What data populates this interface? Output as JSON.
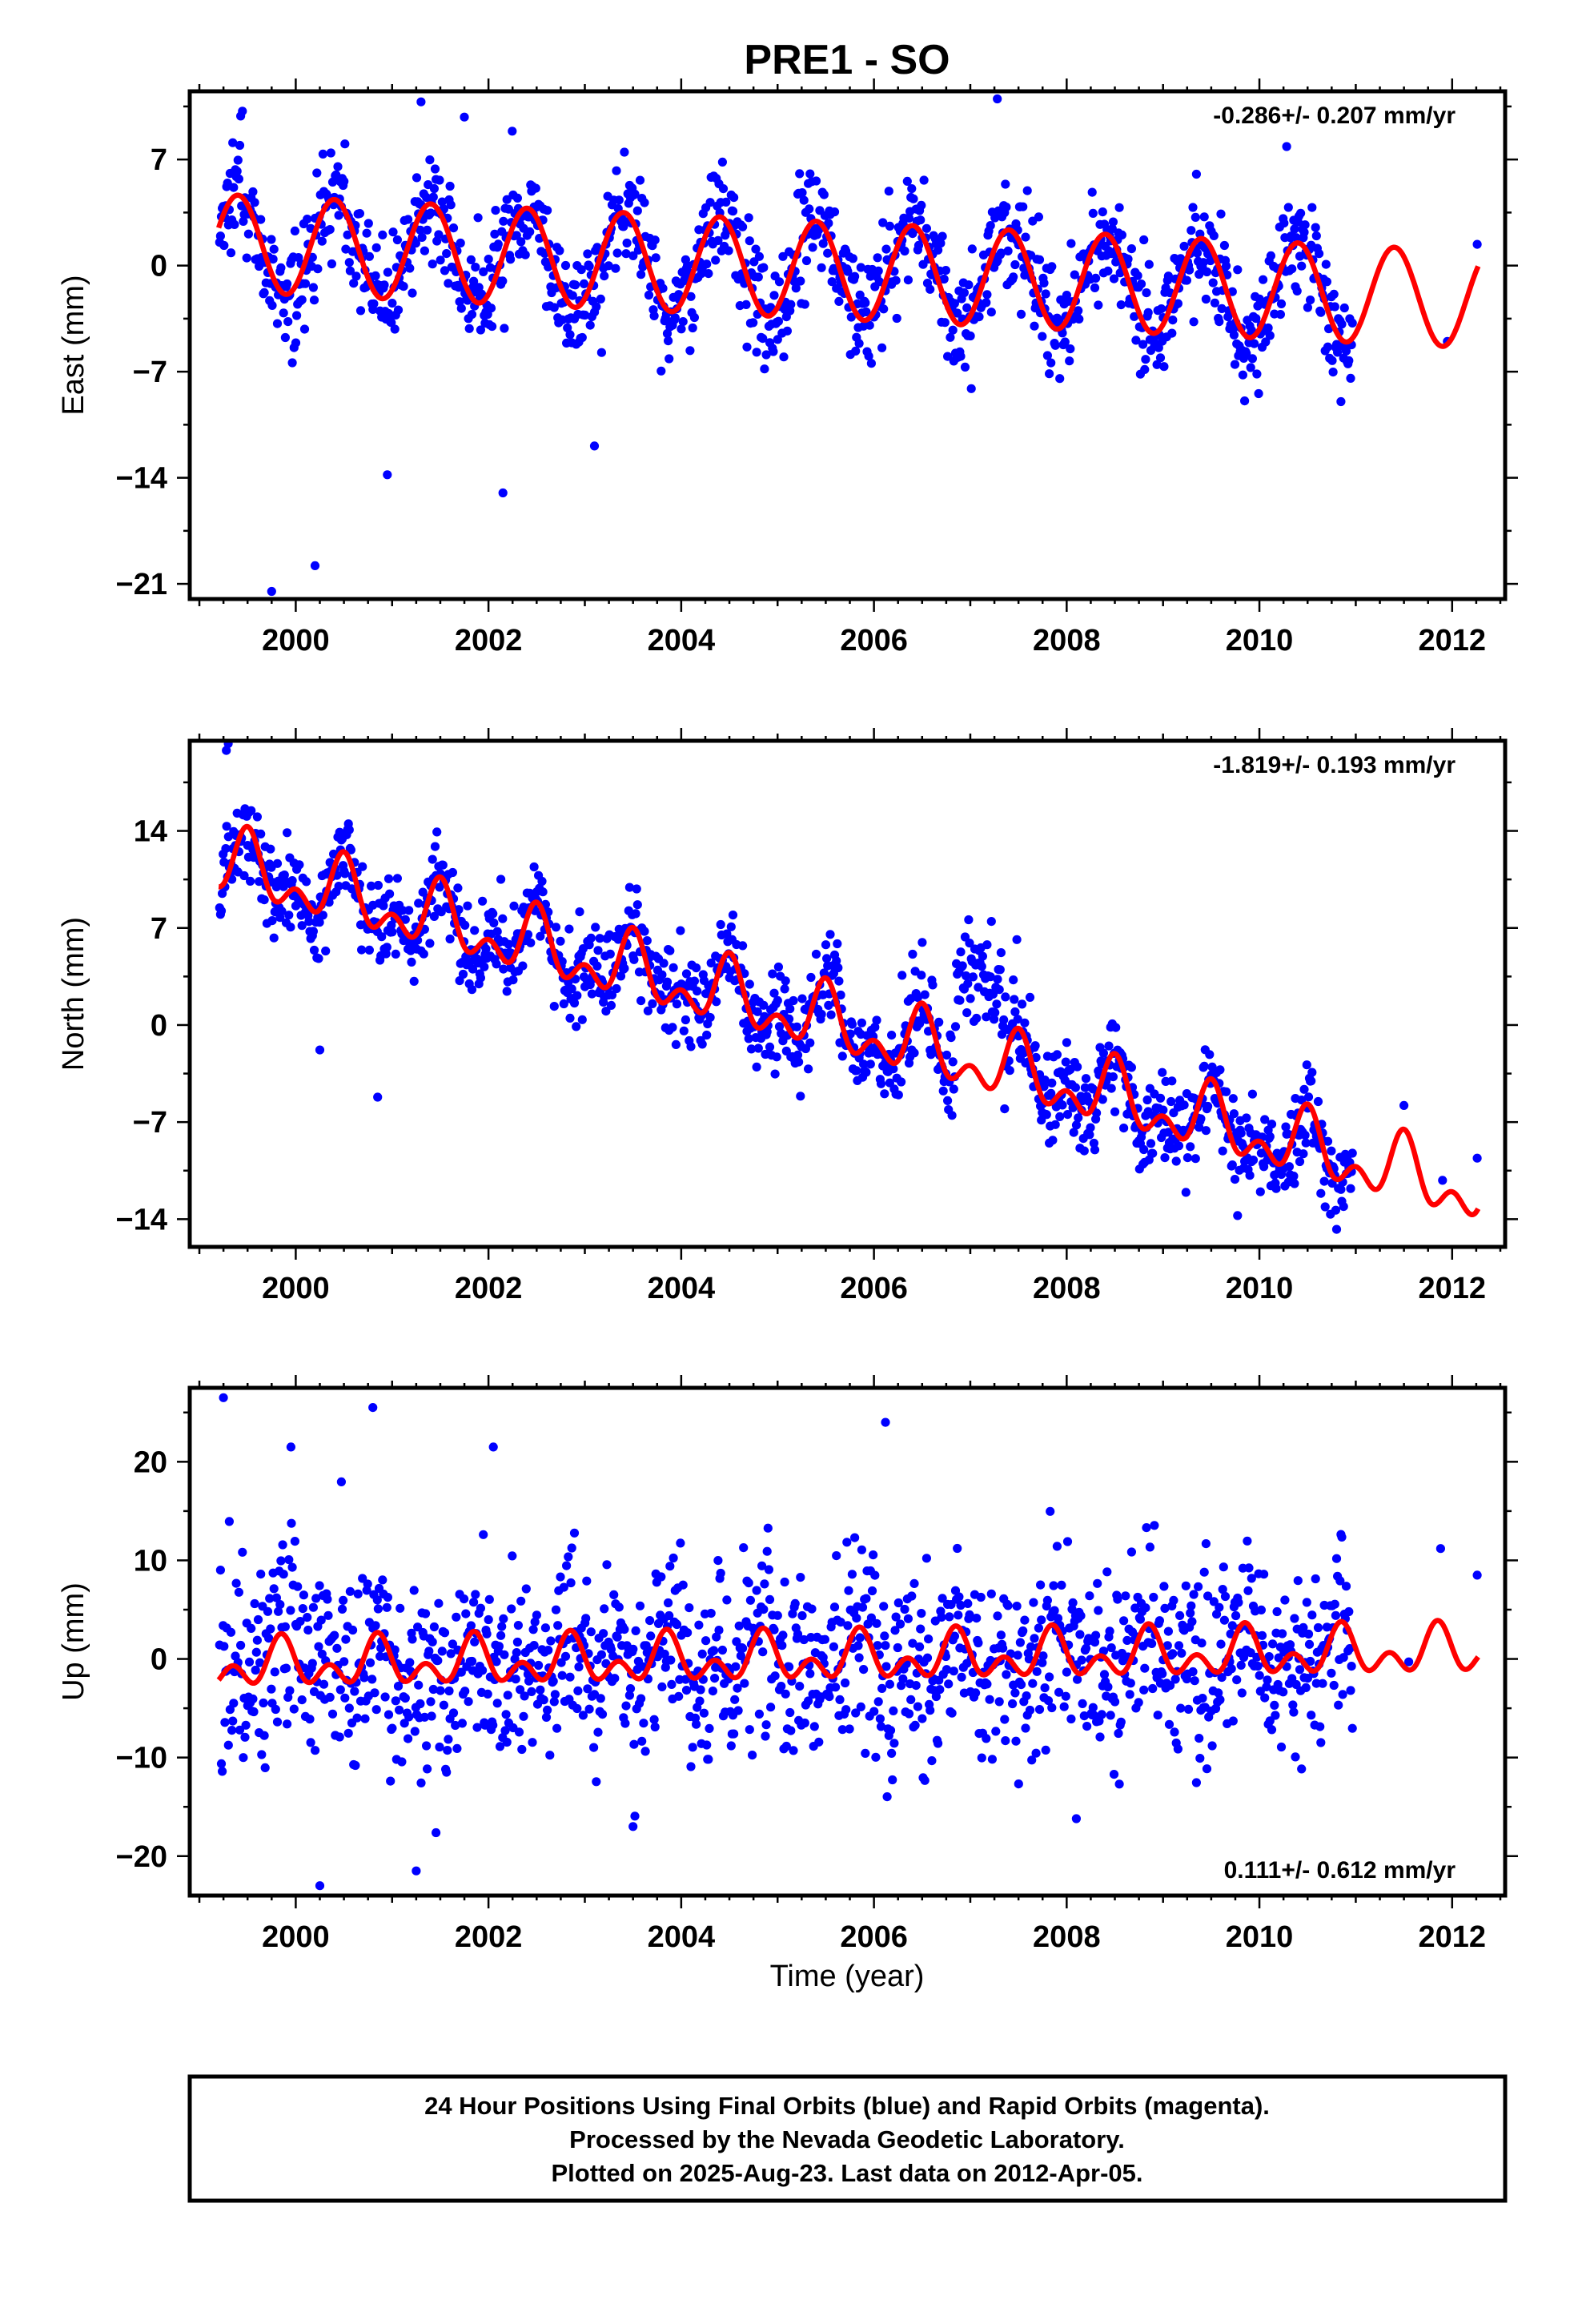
{
  "title": "PRE1 - SO",
  "xlabel": "Time (year)",
  "caption": {
    "line1": "24 Hour Positions Using Final Orbits (blue) and Rapid Orbits (magenta).",
    "line2": "Processed by the Nevada Geodetic Laboratory.",
    "line3": "Plotted on 2025-Aug-23. Last data on 2012-Apr-05."
  },
  "colors": {
    "points": "#0000ff",
    "model": "#ff0000",
    "frame": "#000000"
  },
  "chart_data": [
    {
      "type": "scatter",
      "component": "east",
      "ylabel": "East (mm)",
      "rate_label": "-0.286+/- 0.207 mm/yr",
      "rate_position": "top-right",
      "xlim": [
        1998.9,
        2012.55
      ],
      "ylim": [
        -22,
        11.5
      ],
      "xticks": [
        2000,
        2002,
        2004,
        2006,
        2008,
        2010,
        2012
      ],
      "xtick_labels": [
        "2000",
        "2002",
        "2004",
        "2006",
        "2008",
        "2010",
        "2012"
      ],
      "yticks": [
        7,
        0,
        -7,
        -14,
        -21
      ],
      "ytick_labels": [
        "7",
        "0",
        "−7",
        "−14",
        "−21"
      ],
      "data_span": [
        1999.21,
        2010.97
      ],
      "late_points": [
        [
          2011.95,
          -5.0
        ],
        [
          2012.26,
          1.4
        ]
      ],
      "outliers": [
        [
          2001.3,
          10.8
        ],
        [
          2001.75,
          9.8
        ],
        [
          2002.15,
          -15.0
        ],
        [
          2003.1,
          -11.9
        ],
        [
          1999.75,
          -21.5
        ],
        [
          2000.2,
          -19.8
        ],
        [
          2000.95,
          -13.8
        ],
        [
          2007.28,
          11.0
        ]
      ],
      "series": [
        {
          "name": "Final Orbits",
          "color": "#0000ff",
          "trend_model": {
            "ref_year": 2005.5,
            "offset_mm": -0.3,
            "rate_mm_per_yr": -0.286,
            "annual_amp_mm": 3.2,
            "annual_peak_year_fraction": 0.4,
            "semiannual_amp_mm": 0.0,
            "semiannual_peak_year_fraction": 0.0
          },
          "scatter_sd_mm": 1.9
        }
      ],
      "model_curve": {
        "color": "#ff0000",
        "x_range": [
          1999.2,
          2012.27
        ]
      }
    },
    {
      "type": "scatter",
      "component": "north",
      "ylabel": "North (mm)",
      "rate_label": "-1.819+/- 0.193 mm/yr",
      "rate_position": "top-right",
      "xlim": [
        1998.9,
        2012.55
      ],
      "ylim": [
        -16,
        20.5
      ],
      "xticks": [
        2000,
        2002,
        2004,
        2006,
        2008,
        2010,
        2012
      ],
      "xtick_labels": [
        "2000",
        "2002",
        "2004",
        "2006",
        "2008",
        "2010",
        "2012"
      ],
      "yticks": [
        14,
        7,
        0,
        -7,
        -14
      ],
      "ytick_labels": [
        "14",
        "7",
        "0",
        "−7",
        "−14"
      ],
      "data_span": [
        1999.21,
        2010.97
      ],
      "offset_episode": {
        "x_range": [
          2006.85,
          2007.32
        ],
        "shift_mm": 7.0
      },
      "late_points": [
        [
          2011.5,
          -5.8
        ],
        [
          2011.9,
          -11.2
        ],
        [
          2012.26,
          -9.6
        ]
      ],
      "outliers": [
        [
          1999.3,
          20.3
        ],
        [
          1999.28,
          19.8
        ],
        [
          2000.85,
          -5.2
        ],
        [
          2000.25,
          -1.8
        ],
        [
          2009.8,
          -6.9
        ]
      ],
      "series": [
        {
          "name": "Final Orbits",
          "color": "#0000ff",
          "trend_model": {
            "ref_year": 2005.5,
            "offset_mm": 0.2,
            "rate_mm_per_yr": -1.819,
            "annual_amp_mm": 1.8,
            "annual_peak_year_fraction": 0.5,
            "semiannual_amp_mm": 1.4,
            "semiannual_peak_year_fraction": 0.5
          },
          "scatter_sd_mm": 1.7
        }
      ],
      "model_curve": {
        "color": "#ff0000",
        "x_range": [
          1999.2,
          2012.27
        ]
      }
    },
    {
      "type": "scatter",
      "component": "up",
      "ylabel": "Up (mm)",
      "rate_label": "0.111+/- 0.612 mm/yr",
      "rate_position": "bottom-right",
      "xlim": [
        1998.9,
        2012.55
      ],
      "ylim": [
        -24,
        27.5
      ],
      "xticks": [
        2000,
        2002,
        2004,
        2006,
        2008,
        2010,
        2012
      ],
      "xtick_labels": [
        "2000",
        "2002",
        "2004",
        "2006",
        "2008",
        "2010",
        "2012"
      ],
      "yticks": [
        20,
        10,
        0,
        -10,
        -20
      ],
      "ytick_labels": [
        "20",
        "10",
        "0",
        "−10",
        "−20"
      ],
      "data_span": [
        1999.21,
        2010.97
      ],
      "late_points": [
        [
          2011.55,
          -0.3
        ],
        [
          2011.88,
          11.2
        ],
        [
          2012.26,
          8.5
        ]
      ],
      "outliers": [
        [
          1999.25,
          26.5
        ],
        [
          2000.8,
          25.5
        ],
        [
          2006.12,
          24.0
        ],
        [
          1999.95,
          21.5
        ],
        [
          2002.05,
          21.5
        ],
        [
          2000.25,
          -23.0
        ],
        [
          2001.25,
          -21.5
        ],
        [
          2003.5,
          -17.0
        ],
        [
          2008.1,
          -16.2
        ]
      ],
      "series": [
        {
          "name": "Final Orbits",
          "color": "#0000ff",
          "trend_model": {
            "ref_year": 2005.5,
            "offset_mm": 0.0,
            "rate_mm_per_yr": 0.111,
            "annual_amp_mm": 1.6,
            "annual_peak_year_fraction": 0.85,
            "semiannual_amp_mm": 1.6,
            "semiannual_peak_year_fraction": 0.35
          },
          "scatter_sd_mm": 4.8
        }
      ],
      "model_curve": {
        "color": "#ff0000",
        "x_range": [
          1999.2,
          2012.27
        ]
      }
    }
  ]
}
